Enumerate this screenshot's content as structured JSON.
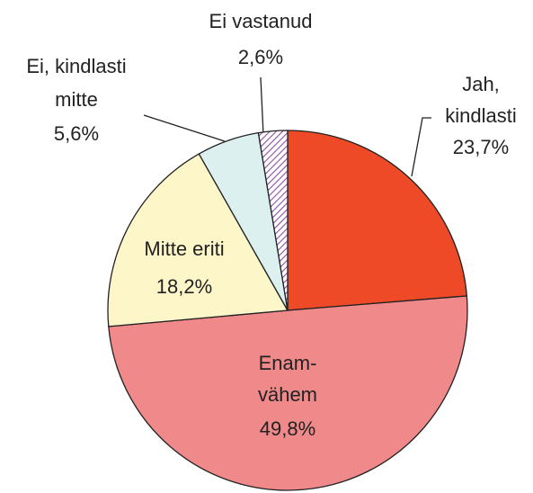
{
  "chart_data": {
    "type": "pie",
    "categories": [
      "Jah, kindlasti",
      "Enam-vähem",
      "Mitte eriti",
      "Ei, kindlasti mitte",
      "Ei vastanud"
    ],
    "values": [
      23.7,
      49.8,
      18.2,
      5.6,
      2.6
    ],
    "value_labels": [
      "23,7%",
      "49,8%",
      "18,2%",
      "5,6%",
      "2,6%"
    ],
    "colors": [
      "#ef4a28",
      "#f0898a",
      "#fdf6c9",
      "#ddf0f0",
      "#8a4fa0"
    ],
    "hatch": [
      false,
      false,
      false,
      false,
      true
    ]
  }
}
